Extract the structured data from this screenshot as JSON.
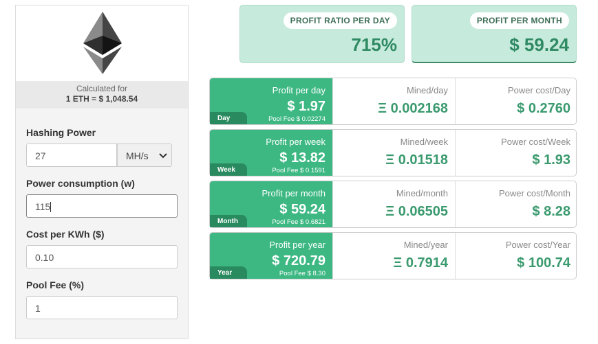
{
  "sidebar": {
    "calculated_for": "Calculated for",
    "rate": "1 ETH = $ 1,048.54",
    "fields": [
      {
        "label": "Hashing Power",
        "value": "27",
        "unit": "MH/s"
      },
      {
        "label": "Power consumption (w)",
        "value": "115"
      },
      {
        "label": "Cost per KWh ($)",
        "value": "0.10"
      },
      {
        "label": "Pool Fee (%)",
        "value": "1"
      }
    ]
  },
  "summary": [
    {
      "label": "PROFIT RATIO PER DAY",
      "value": "715%"
    },
    {
      "label": "PROFIT PER MONTH",
      "value": "$ 59.24"
    }
  ],
  "periods": [
    {
      "tag": "Day",
      "profit_label": "Profit per day",
      "profit": "$ 1.97",
      "pool_fee": "Pool Fee $ 0.02274",
      "mined_label": "Mined/day",
      "mined": "Ξ 0.002168",
      "power_label": "Power cost/Day",
      "power": "$ 0.2760"
    },
    {
      "tag": "Week",
      "profit_label": "Profit per week",
      "profit": "$ 13.82",
      "pool_fee": "Pool Fee $ 0.1591",
      "mined_label": "Mined/week",
      "mined": "Ξ 0.01518",
      "power_label": "Power cost/Week",
      "power": "$ 1.93"
    },
    {
      "tag": "Month",
      "profit_label": "Profit per month",
      "profit": "$ 59.24",
      "pool_fee": "Pool Fee $ 0.6821",
      "mined_label": "Mined/month",
      "mined": "Ξ 0.06505",
      "power_label": "Power cost/Month",
      "power": "$ 8.28"
    },
    {
      "tag": "Year",
      "profit_label": "Profit per year",
      "profit": "$ 720.79",
      "pool_fee": "Pool Fee $ 8.30",
      "mined_label": "Mined/year",
      "mined": "Ξ 0.7914",
      "power_label": "Power cost/Year",
      "power": "$ 100.74"
    }
  ]
}
